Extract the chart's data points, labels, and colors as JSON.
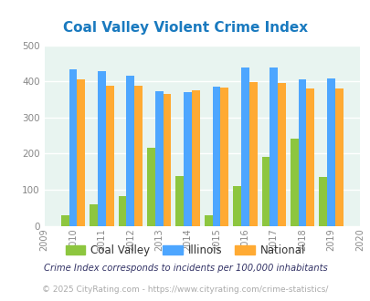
{
  "title": "Coal Valley Violent Crime Index",
  "title_color": "#1a7abf",
  "years": [
    2009,
    2010,
    2011,
    2012,
    2013,
    2014,
    2015,
    2016,
    2017,
    2018,
    2019,
    2020
  ],
  "bar_years": [
    2010,
    2011,
    2012,
    2013,
    2014,
    2015,
    2016,
    2017,
    2018,
    2019
  ],
  "coal_valley": [
    30,
    60,
    83,
    215,
    137,
    30,
    110,
    190,
    240,
    136
  ],
  "illinois": [
    433,
    428,
    415,
    372,
    369,
    384,
    438,
    438,
    405,
    409
  ],
  "national": [
    405,
    387,
    387,
    366,
    375,
    383,
    397,
    394,
    380,
    379
  ],
  "coal_valley_color": "#8dc63f",
  "illinois_color": "#4da6ff",
  "national_color": "#ffaa33",
  "bg_color": "#e8f4f0",
  "ylim": [
    0,
    500
  ],
  "yticks": [
    0,
    100,
    200,
    300,
    400,
    500
  ],
  "footnote1": "Crime Index corresponds to incidents per 100,000 inhabitants",
  "footnote2": "© 2025 CityRating.com - https://www.cityrating.com/crime-statistics/",
  "bar_width": 0.28,
  "fig_width": 4.06,
  "fig_height": 3.3,
  "legend_labels": [
    "Coal Valley",
    "Illinois",
    "National"
  ]
}
